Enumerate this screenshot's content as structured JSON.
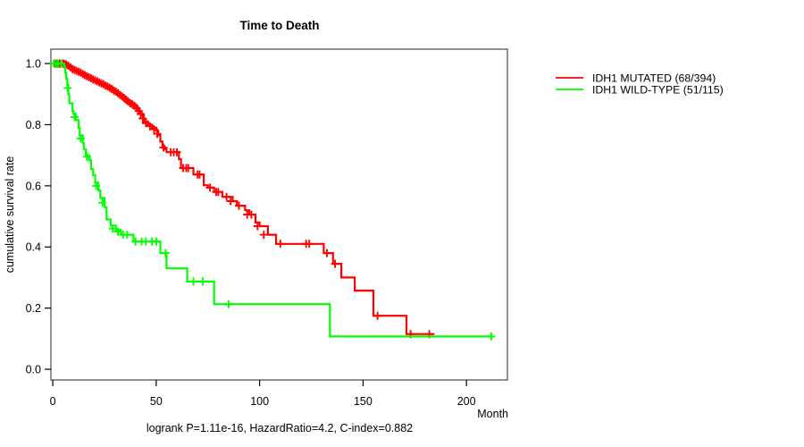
{
  "chart_data": {
    "type": "line",
    "subtype": "kaplan-meier-step",
    "title": "Time to Death",
    "xlabel": "Month",
    "ylabel": "cumulative survival rate",
    "footnote": "logrank P=1.11e-16, HazardRatio=4.2, C-index=0.882",
    "legend_position": "right-outside",
    "grid": false,
    "frame_color": "#4a4a4a",
    "tick_color": "#000000",
    "x_axis": {
      "ticks": [
        0,
        50,
        100,
        150,
        200
      ]
    },
    "y_axis": {
      "ticks": [
        "0.0",
        "0.2",
        "0.4",
        "0.6",
        "0.8",
        "1.0"
      ]
    },
    "x_range": [
      -0.9,
      219.8
    ],
    "y_range": [
      -0.035,
      1.047
    ],
    "series": [
      {
        "name": "IDH1 MUTATED (68/394)",
        "events": 68,
        "n": 394,
        "color": "#FF0000",
        "end": 184.5,
        "steps": [
          [
            0,
            1.0
          ],
          [
            7,
            0.995
          ],
          [
            8,
            0.99
          ],
          [
            9,
            0.985
          ],
          [
            10,
            0.98
          ],
          [
            11,
            0.978
          ],
          [
            12,
            0.975
          ],
          [
            13,
            0.972
          ],
          [
            14,
            0.968
          ],
          [
            15,
            0.964
          ],
          [
            16,
            0.96
          ],
          [
            17,
            0.957
          ],
          [
            18,
            0.954
          ],
          [
            19,
            0.95
          ],
          [
            20,
            0.947
          ],
          [
            21,
            0.944
          ],
          [
            22,
            0.94
          ],
          [
            23,
            0.937
          ],
          [
            24,
            0.934
          ],
          [
            25,
            0.93
          ],
          [
            26,
            0.927
          ],
          [
            27,
            0.923
          ],
          [
            28,
            0.92
          ],
          [
            29,
            0.915
          ],
          [
            30,
            0.91
          ],
          [
            31,
            0.906
          ],
          [
            32,
            0.9
          ],
          [
            33,
            0.896
          ],
          [
            34,
            0.89
          ],
          [
            35,
            0.885
          ],
          [
            36,
            0.878
          ],
          [
            37,
            0.872
          ],
          [
            38,
            0.868
          ],
          [
            39,
            0.866
          ],
          [
            40,
            0.858
          ],
          [
            41,
            0.85
          ],
          [
            42,
            0.84
          ],
          [
            43,
            0.83
          ],
          [
            44,
            0.81
          ],
          [
            46,
            0.8
          ],
          [
            48,
            0.79
          ],
          [
            50,
            0.78
          ],
          [
            51,
            0.765
          ],
          [
            52,
            0.745
          ],
          [
            53,
            0.73
          ],
          [
            54,
            0.72
          ],
          [
            55,
            0.71
          ],
          [
            61,
            0.687
          ],
          [
            62,
            0.658
          ],
          [
            68,
            0.637
          ],
          [
            73,
            0.602
          ],
          [
            75,
            0.594
          ],
          [
            78,
            0.58
          ],
          [
            82,
            0.564
          ],
          [
            87,
            0.55
          ],
          [
            89,
            0.535
          ],
          [
            93,
            0.52
          ],
          [
            95,
            0.506
          ],
          [
            98,
            0.48
          ],
          [
            100,
            0.468
          ],
          [
            104,
            0.44
          ],
          [
            108,
            0.41
          ],
          [
            131,
            0.38
          ],
          [
            135.5,
            0.345
          ],
          [
            139.5,
            0.3
          ],
          [
            146,
            0.257
          ],
          [
            155,
            0.175
          ],
          [
            171,
            0.115
          ]
        ],
        "censors": [
          [
            1,
            1.0
          ],
          [
            1.5,
            1.0
          ],
          [
            2,
            1.0
          ],
          [
            2.5,
            1.0
          ],
          [
            3,
            1.0
          ],
          [
            3.5,
            1.0
          ],
          [
            4,
            1.0
          ],
          [
            5,
            1.0
          ],
          [
            5.5,
            0.998
          ],
          [
            6,
            0.997
          ],
          [
            6.5,
            0.996
          ],
          [
            7.5,
            0.993
          ],
          [
            8.5,
            0.988
          ],
          [
            9.5,
            0.982
          ],
          [
            10.5,
            0.979
          ],
          [
            11.5,
            0.976
          ],
          [
            12.5,
            0.973
          ],
          [
            13.5,
            0.97
          ],
          [
            14.5,
            0.966
          ],
          [
            15.5,
            0.962
          ],
          [
            16.5,
            0.958
          ],
          [
            17.5,
            0.955
          ],
          [
            18.5,
            0.952
          ],
          [
            19.5,
            0.948
          ],
          [
            20.5,
            0.945
          ],
          [
            21.5,
            0.942
          ],
          [
            22.5,
            0.938
          ],
          [
            23.5,
            0.935
          ],
          [
            24.5,
            0.932
          ],
          [
            25.5,
            0.928
          ],
          [
            26.5,
            0.925
          ],
          [
            27.5,
            0.921
          ],
          [
            28.5,
            0.917
          ],
          [
            29.5,
            0.912
          ],
          [
            30.5,
            0.908
          ],
          [
            31.5,
            0.903
          ],
          [
            32.5,
            0.898
          ],
          [
            33.5,
            0.893
          ],
          [
            34.5,
            0.887
          ],
          [
            35.5,
            0.881
          ],
          [
            36.5,
            0.875
          ],
          [
            37.5,
            0.87
          ],
          [
            38.5,
            0.867
          ],
          [
            39.5,
            0.862
          ],
          [
            40.5,
            0.854
          ],
          [
            41.5,
            0.845
          ],
          [
            42.5,
            0.835
          ],
          [
            43.5,
            0.82
          ],
          [
            45,
            0.805
          ],
          [
            47,
            0.795
          ],
          [
            49,
            0.785
          ],
          [
            50.5,
            0.77
          ],
          [
            53.5,
            0.725
          ],
          [
            57,
            0.71
          ],
          [
            58.5,
            0.71
          ],
          [
            60,
            0.71
          ],
          [
            63,
            0.658
          ],
          [
            64.5,
            0.658
          ],
          [
            65.5,
            0.658
          ],
          [
            70,
            0.637
          ],
          [
            71,
            0.637
          ],
          [
            76,
            0.594
          ],
          [
            79,
            0.58
          ],
          [
            80,
            0.58
          ],
          [
            84,
            0.564
          ],
          [
            86,
            0.55
          ],
          [
            90,
            0.535
          ],
          [
            94,
            0.506
          ],
          [
            96,
            0.506
          ],
          [
            99,
            0.468
          ],
          [
            102,
            0.44
          ],
          [
            110,
            0.41
          ],
          [
            122.5,
            0.41
          ],
          [
            124,
            0.41
          ],
          [
            132.5,
            0.38
          ],
          [
            136.5,
            0.345
          ],
          [
            157,
            0.175
          ],
          [
            173,
            0.115
          ],
          [
            182,
            0.115
          ]
        ]
      },
      {
        "name": "IDH1 WILD-TYPE (51/115)",
        "events": 51,
        "n": 115,
        "color": "#00FF00",
        "end": 213,
        "steps": [
          [
            0,
            1.0
          ],
          [
            5.5,
            0.99
          ],
          [
            6,
            0.97
          ],
          [
            6.5,
            0.95
          ],
          [
            7,
            0.93
          ],
          [
            7.5,
            0.9
          ],
          [
            8,
            0.87
          ],
          [
            9.5,
            0.845
          ],
          [
            10,
            0.836
          ],
          [
            11,
            0.815
          ],
          [
            12.5,
            0.79
          ],
          [
            13,
            0.765
          ],
          [
            14.5,
            0.74
          ],
          [
            15,
            0.72
          ],
          [
            16,
            0.7
          ],
          [
            17.5,
            0.685
          ],
          [
            18.5,
            0.655
          ],
          [
            19.5,
            0.635
          ],
          [
            20.5,
            0.61
          ],
          [
            22,
            0.585
          ],
          [
            23,
            0.56
          ],
          [
            25,
            0.53
          ],
          [
            26,
            0.49
          ],
          [
            28,
            0.47
          ],
          [
            30.5,
            0.455
          ],
          [
            33,
            0.44
          ],
          [
            39,
            0.418
          ],
          [
            52,
            0.38
          ],
          [
            55,
            0.33
          ],
          [
            65,
            0.287
          ],
          [
            78,
            0.213
          ],
          [
            134,
            0.107
          ]
        ],
        "censors": [
          [
            0.5,
            1.0
          ],
          [
            1.5,
            1.0
          ],
          [
            2.5,
            1.0
          ],
          [
            4,
            1.0
          ],
          [
            7.2,
            0.92
          ],
          [
            10.5,
            0.825
          ],
          [
            13.5,
            0.755
          ],
          [
            16.5,
            0.695
          ],
          [
            21,
            0.6
          ],
          [
            24,
            0.545
          ],
          [
            29,
            0.46
          ],
          [
            31.5,
            0.45
          ],
          [
            34,
            0.44
          ],
          [
            36,
            0.44
          ],
          [
            40,
            0.418
          ],
          [
            43,
            0.418
          ],
          [
            45,
            0.418
          ],
          [
            48,
            0.418
          ],
          [
            50,
            0.418
          ],
          [
            54.5,
            0.38
          ],
          [
            68,
            0.287
          ],
          [
            72.5,
            0.287
          ],
          [
            85,
            0.213
          ],
          [
            212,
            0.107
          ]
        ]
      }
    ]
  }
}
